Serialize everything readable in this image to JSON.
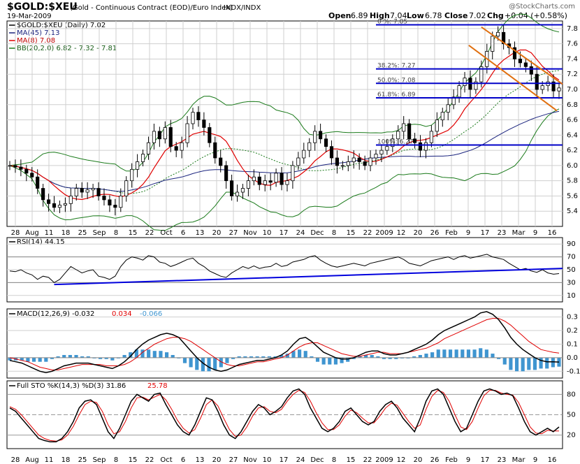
{
  "header": {
    "symbol": "$GOLD:$XEU",
    "description": "(Gold - Continuous Contract (EOD)/Euro Index)",
    "exchange": "INDX/INDX",
    "date": "19-Mar-2009",
    "watermark": "@StockCharts.com",
    "open_label": "Open",
    "open": "6.89",
    "high_label": "High",
    "high": "7.04",
    "low_label": "Low",
    "low": "6.78",
    "close_label": "Close",
    "close": "7.02",
    "chg_label": "Chg",
    "chg": "+0.04 (+0.58%)"
  },
  "colors": {
    "up": "#000000",
    "down": "#000000",
    "ma45": "#1a237e",
    "ma8": "#e00000",
    "bb": "#1a7a1a",
    "trend": "#e07010",
    "fib": "#0000c8",
    "rsi_trend": "#0000dd",
    "histogram": "#3f95d0",
    "macd_signal": "#e00000",
    "sto_d": "#e00000"
  },
  "chart_data": [
    {
      "type": "candlestick",
      "panel": "price",
      "legend": [
        {
          "label": "$GOLD:$XEU (Daily) 7.02"
        },
        {
          "label": "MA(45) 7.13"
        },
        {
          "label": "MA(8) 7.08"
        },
        {
          "label": "BB(20,2.0) 6.82 - 7.32 - 7.81"
        }
      ],
      "ylim": [
        5.2,
        7.9
      ],
      "y_ticks": [
        5.4,
        5.6,
        5.8,
        6.0,
        6.2,
        6.4,
        6.6,
        6.8,
        7.0,
        7.2,
        7.4,
        7.6,
        7.8
      ],
      "x_labels": [
        "28",
        "Aug",
        "11",
        "18",
        "25",
        "Sep",
        "8",
        "15",
        "22",
        "Oct",
        "6",
        "13",
        "20",
        "27",
        "Nov",
        "10",
        "17",
        "24",
        "Dec",
        "8",
        "15",
        "22",
        "2009",
        "12",
        "20",
        "26",
        "Feb",
        "9",
        "17",
        "23",
        "Mar",
        "9",
        "16"
      ],
      "closes": [
        6.0,
        5.98,
        5.95,
        5.9,
        5.85,
        5.7,
        5.55,
        5.5,
        5.45,
        5.48,
        5.5,
        5.6,
        5.7,
        5.65,
        5.68,
        5.7,
        5.6,
        5.55,
        5.48,
        5.45,
        5.6,
        5.8,
        5.95,
        6.05,
        6.15,
        6.3,
        6.45,
        6.35,
        6.5,
        6.25,
        6.2,
        6.3,
        6.55,
        6.7,
        6.6,
        6.5,
        6.3,
        6.1,
        6.0,
        5.8,
        5.6,
        5.65,
        5.7,
        5.8,
        5.85,
        5.75,
        5.8,
        5.78,
        5.9,
        5.75,
        5.8,
        6.0,
        6.1,
        6.2,
        6.3,
        6.45,
        6.35,
        6.25,
        6.1,
        6.0,
        6.0,
        6.05,
        6.1,
        6.05,
        6.0,
        6.1,
        6.15,
        6.2,
        6.25,
        6.35,
        6.45,
        6.55,
        6.35,
        6.3,
        6.2,
        6.3,
        6.45,
        6.6,
        6.7,
        6.8,
        6.9,
        7.05,
        7.15,
        7.0,
        7.1,
        7.3,
        7.5,
        7.7,
        7.75,
        7.6,
        7.55,
        7.4,
        7.35,
        7.3,
        7.2,
        7.0,
        7.05,
        7.1,
        6.98,
        7.02
      ],
      "fib_levels": [
        {
          "label": "0 %: 7.85",
          "value": 7.85
        },
        {
          "label": "38.2%: 7.27",
          "value": 7.27
        },
        {
          "label": "50.0%: 7.08",
          "value": 7.08
        },
        {
          "label": "61.8%: 6.89",
          "value": 6.89
        },
        {
          "label": "100%: 6.27",
          "value": 6.27
        }
      ]
    },
    {
      "type": "line",
      "panel": "rsi",
      "legend": [
        {
          "label": "RSI(14) 44.15"
        }
      ],
      "ylim": [
        0,
        100
      ],
      "y_ticks": [
        10,
        30,
        50,
        70,
        90
      ],
      "levels": [
        30,
        70
      ],
      "values": [
        48,
        47,
        50,
        45,
        42,
        35,
        40,
        38,
        30,
        35,
        45,
        55,
        50,
        45,
        48,
        50,
        40,
        38,
        35,
        40,
        55,
        65,
        70,
        68,
        65,
        72,
        70,
        62,
        60,
        55,
        58,
        62,
        66,
        68,
        60,
        55,
        48,
        44,
        40,
        38,
        45,
        50,
        55,
        52,
        56,
        52,
        54,
        55,
        60,
        55,
        57,
        62,
        64,
        66,
        70,
        72,
        65,
        60,
        56,
        54,
        56,
        58,
        60,
        58,
        56,
        60,
        62,
        64,
        66,
        68,
        70,
        66,
        60,
        58,
        56,
        60,
        64,
        66,
        68,
        70,
        66,
        70,
        72,
        68,
        70,
        72,
        74,
        70,
        68,
        66,
        60,
        55,
        50,
        52,
        48,
        46,
        50,
        45,
        43,
        44
      ]
    },
    {
      "type": "line",
      "panel": "macd",
      "legend": [
        {
          "label": "MACD(12,26,9) -0.032"
        },
        {
          "label": "0.034"
        },
        {
          "label": "-0.066"
        }
      ],
      "ylim": [
        -0.15,
        0.36
      ],
      "y_ticks": [
        -0.1,
        0.0,
        0.1,
        0.2,
        0.3
      ],
      "macd": [
        -0.02,
        -0.03,
        -0.04,
        -0.06,
        -0.08,
        -0.1,
        -0.11,
        -0.1,
        -0.08,
        -0.06,
        -0.05,
        -0.04,
        -0.04,
        -0.04,
        -0.05,
        -0.06,
        -0.07,
        -0.08,
        -0.06,
        -0.03,
        0.01,
        0.06,
        0.1,
        0.13,
        0.15,
        0.17,
        0.18,
        0.17,
        0.15,
        0.1,
        0.05,
        0.0,
        -0.04,
        -0.07,
        -0.09,
        -0.1,
        -0.09,
        -0.07,
        -0.05,
        -0.04,
        -0.03,
        -0.02,
        -0.02,
        -0.01,
        0.0,
        0.02,
        0.05,
        0.1,
        0.14,
        0.15,
        0.12,
        0.08,
        0.04,
        0.02,
        0.0,
        -0.01,
        -0.01,
        0.0,
        0.02,
        0.04,
        0.05,
        0.05,
        0.03,
        0.02,
        0.02,
        0.03,
        0.04,
        0.06,
        0.08,
        0.1,
        0.13,
        0.17,
        0.2,
        0.22,
        0.24,
        0.26,
        0.28,
        0.3,
        0.33,
        0.34,
        0.32,
        0.28,
        0.22,
        0.15,
        0.1,
        0.06,
        0.03,
        0.0,
        -0.02,
        -0.03,
        -0.03,
        -0.032
      ],
      "signal": [
        0.0,
        -0.01,
        -0.02,
        -0.03,
        -0.05,
        -0.07,
        -0.08,
        -0.09,
        -0.09,
        -0.08,
        -0.07,
        -0.06,
        -0.05,
        -0.05,
        -0.05,
        -0.05,
        -0.06,
        -0.06,
        -0.06,
        -0.05,
        -0.03,
        0.0,
        0.04,
        0.07,
        0.1,
        0.12,
        0.14,
        0.15,
        0.15,
        0.14,
        0.12,
        0.09,
        0.06,
        0.03,
        0.0,
        -0.03,
        -0.05,
        -0.06,
        -0.06,
        -0.05,
        -0.04,
        -0.03,
        -0.03,
        -0.02,
        -0.01,
        0.0,
        0.02,
        0.05,
        0.08,
        0.1,
        0.11,
        0.11,
        0.09,
        0.07,
        0.05,
        0.03,
        0.02,
        0.01,
        0.01,
        0.02,
        0.03,
        0.04,
        0.04,
        0.03,
        0.03,
        0.03,
        0.04,
        0.05,
        0.06,
        0.07,
        0.09,
        0.11,
        0.14,
        0.16,
        0.18,
        0.2,
        0.22,
        0.24,
        0.26,
        0.28,
        0.29,
        0.29,
        0.27,
        0.24,
        0.2,
        0.16,
        0.12,
        0.09,
        0.06,
        0.05,
        0.04,
        0.034
      ]
    },
    {
      "type": "line",
      "panel": "stochastic",
      "legend": [
        {
          "label": "Full STO %K(14,3) %D(3) 31.86"
        },
        {
          "label": "25.78"
        }
      ],
      "ylim": [
        0,
        100
      ],
      "y_ticks": [
        20,
        50,
        80
      ],
      "levels": [
        20,
        50,
        80
      ],
      "k": [
        60,
        55,
        45,
        35,
        25,
        15,
        12,
        10,
        10,
        15,
        25,
        40,
        60,
        70,
        72,
        65,
        45,
        25,
        15,
        30,
        50,
        70,
        80,
        75,
        70,
        80,
        82,
        65,
        50,
        35,
        25,
        20,
        35,
        55,
        75,
        72,
        55,
        35,
        20,
        15,
        25,
        40,
        55,
        65,
        60,
        50,
        55,
        62,
        75,
        85,
        88,
        80,
        60,
        45,
        30,
        25,
        30,
        40,
        55,
        60,
        50,
        40,
        35,
        40,
        55,
        65,
        70,
        60,
        45,
        35,
        25,
        45,
        70,
        85,
        88,
        80,
        60,
        40,
        25,
        30,
        50,
        70,
        85,
        88,
        85,
        80,
        82,
        78,
        60,
        40,
        25,
        20,
        25,
        30,
        25,
        32
      ],
      "d": [
        62,
        58,
        50,
        40,
        30,
        20,
        15,
        12,
        11,
        13,
        20,
        33,
        50,
        65,
        70,
        68,
        55,
        35,
        22,
        25,
        40,
        60,
        75,
        76,
        72,
        76,
        80,
        72,
        58,
        42,
        30,
        23,
        28,
        45,
        65,
        72,
        63,
        45,
        28,
        18,
        20,
        32,
        48,
        60,
        62,
        55,
        53,
        58,
        70,
        80,
        86,
        83,
        70,
        53,
        38,
        28,
        28,
        35,
        48,
        57,
        53,
        45,
        38,
        38,
        48,
        60,
        67,
        64,
        52,
        40,
        30,
        35,
        58,
        77,
        86,
        83,
        70,
        50,
        32,
        28,
        40,
        60,
        78,
        86,
        86,
        82,
        80,
        79,
        68,
        50,
        32,
        23,
        22,
        27,
        26,
        26
      ]
    }
  ]
}
